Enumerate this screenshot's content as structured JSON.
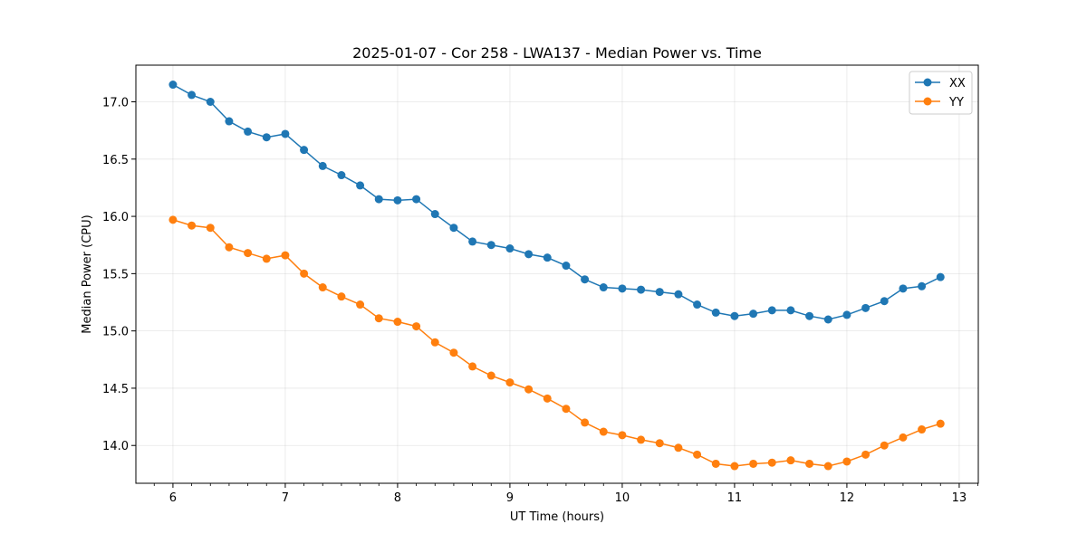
{
  "chart_data": {
    "type": "line",
    "title": "2025-01-07 - Cor 258 - LWA137 - Median Power vs. Time",
    "xlabel": "UT Time (hours)",
    "ylabel": "Median Power (CPU)",
    "xlim": [
      5.67,
      13.17
    ],
    "ylim": [
      13.67,
      17.32
    ],
    "xticks": [
      6,
      7,
      8,
      9,
      10,
      11,
      12,
      13
    ],
    "xtick_labels": [
      "6",
      "7",
      "8",
      "9",
      "10",
      "11",
      "12",
      "13"
    ],
    "yticks": [
      14.0,
      14.5,
      15.0,
      15.5,
      16.0,
      16.5,
      17.0
    ],
    "ytick_labels": [
      "14.0",
      "14.5",
      "15.0",
      "15.5",
      "16.0",
      "16.5",
      "17.0"
    ],
    "grid": true,
    "legend_position": "top-right",
    "x": [
      6.0,
      6.1667,
      6.3333,
      6.5,
      6.6667,
      6.8333,
      7.0,
      7.1667,
      7.3333,
      7.5,
      7.6667,
      7.8333,
      8.0,
      8.1667,
      8.3333,
      8.5,
      8.6667,
      8.8333,
      9.0,
      9.1667,
      9.3333,
      9.5,
      9.6667,
      9.8333,
      10.0,
      10.1667,
      10.3333,
      10.5,
      10.6667,
      10.8333,
      11.0,
      11.1667,
      11.3333,
      11.5,
      11.6667,
      11.8333,
      12.0,
      12.1667,
      12.3333,
      12.5,
      12.6667,
      12.8333
    ],
    "series": [
      {
        "name": "XX",
        "color": "#1f77b4",
        "values": [
          17.15,
          17.06,
          17.0,
          16.83,
          16.74,
          16.69,
          16.72,
          16.58,
          16.44,
          16.36,
          16.27,
          16.15,
          16.14,
          16.15,
          16.02,
          15.9,
          15.78,
          15.75,
          15.72,
          15.67,
          15.64,
          15.57,
          15.45,
          15.38,
          15.37,
          15.36,
          15.34,
          15.32,
          15.23,
          15.16,
          15.13,
          15.15,
          15.18,
          15.18,
          15.13,
          15.1,
          15.14,
          15.2,
          15.26,
          15.37,
          15.39,
          15.47
        ]
      },
      {
        "name": "YY",
        "color": "#ff7f0e",
        "values": [
          15.97,
          15.92,
          15.9,
          15.73,
          15.68,
          15.63,
          15.66,
          15.5,
          15.38,
          15.3,
          15.23,
          15.11,
          15.08,
          15.04,
          14.9,
          14.81,
          14.69,
          14.61,
          14.55,
          14.49,
          14.41,
          14.32,
          14.2,
          14.12,
          14.09,
          14.05,
          14.02,
          13.98,
          13.92,
          13.84,
          13.82,
          13.84,
          13.85,
          13.87,
          13.84,
          13.82,
          13.86,
          13.92,
          14.0,
          14.07,
          14.14,
          14.19
        ]
      }
    ]
  }
}
